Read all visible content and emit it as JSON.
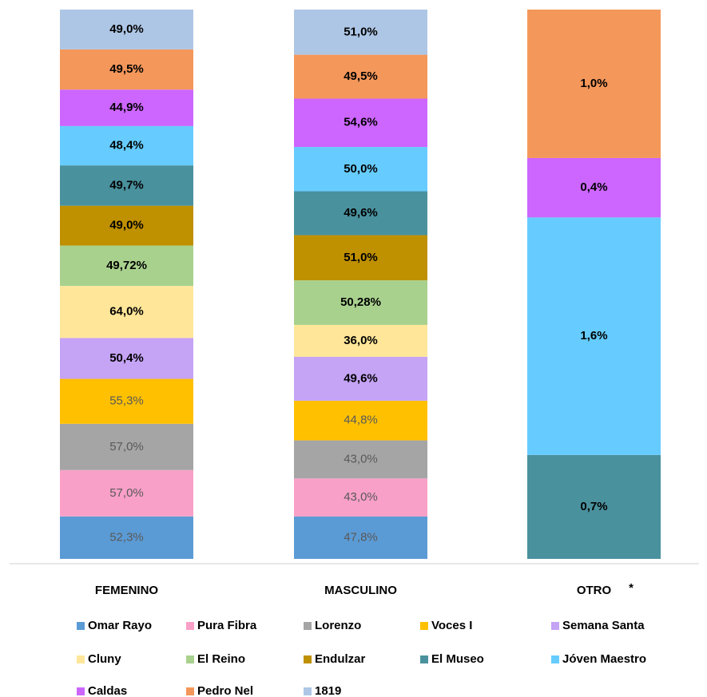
{
  "chart_data": {
    "type": "stacked_bar_100",
    "categories": [
      "FEMENINO",
      "MASCULINO",
      "OTRO"
    ],
    "annotation": "*",
    "series": [
      {
        "name": "Omar Rayo",
        "color": "#5b9bd5",
        "label_bold": false,
        "values": [
          52.3,
          47.8,
          null
        ],
        "value_labels": [
          "52,3%",
          "47,8%",
          null
        ]
      },
      {
        "name": "Pura Fibra",
        "color": "#f9a0c8",
        "label_bold": false,
        "values": [
          57.0,
          43.0,
          null
        ],
        "value_labels": [
          "57,0%",
          "43,0%",
          null
        ]
      },
      {
        "name": "Lorenzo",
        "color": "#a5a5a5",
        "label_bold": false,
        "values": [
          57.0,
          43.0,
          null
        ],
        "value_labels": [
          "57,0%",
          "43,0%",
          null
        ]
      },
      {
        "name": "Voces I",
        "color": "#ffc000",
        "label_bold": false,
        "values": [
          55.3,
          44.8,
          null
        ],
        "value_labels": [
          "55,3%",
          "44,8%",
          null
        ]
      },
      {
        "name": "Semana Santa",
        "color": "#c5a3f5",
        "label_bold": true,
        "values": [
          50.4,
          49.6,
          null
        ],
        "value_labels": [
          "50,4%",
          "49,6%",
          null
        ]
      },
      {
        "name": "Cluny",
        "color": "#ffe699",
        "label_bold": true,
        "values": [
          64.0,
          36.0,
          null
        ],
        "value_labels": [
          "64,0%",
          "36,0%",
          null
        ]
      },
      {
        "name": "El Reino",
        "color": "#a9d18e",
        "label_bold": true,
        "values": [
          49.72,
          50.28,
          null
        ],
        "value_labels": [
          "49,72%",
          "50,28%",
          null
        ]
      },
      {
        "name": "Endulzar",
        "color": "#bf9000",
        "label_bold": true,
        "values": [
          49.0,
          51.0,
          null
        ],
        "value_labels": [
          "49,0%",
          "51,0%",
          null
        ]
      },
      {
        "name": "El Museo",
        "color": "#4a919e",
        "label_bold": true,
        "values": [
          49.7,
          49.6,
          0.7
        ],
        "value_labels": [
          "49,7%",
          "49,6%",
          "0,7%"
        ]
      },
      {
        "name": "Jóven Maestro",
        "color": "#66ccff",
        "label_bold": true,
        "values": [
          48.4,
          50.0,
          1.6
        ],
        "value_labels": [
          "48,4%",
          "50,0%",
          "1,6%"
        ]
      },
      {
        "name": "Caldas",
        "color": "#cc66ff",
        "label_bold": true,
        "values": [
          44.9,
          54.6,
          0.4
        ],
        "value_labels": [
          "44,9%",
          "54,6%",
          "0,4%"
        ]
      },
      {
        "name": "Pedro Nel",
        "color": "#f4975a",
        "label_bold": true,
        "values": [
          49.5,
          49.5,
          1.0
        ],
        "value_labels": [
          "49,5%",
          "49,5%",
          "1,0%"
        ]
      },
      {
        "name": "1819",
        "color": "#adc6e5",
        "label_bold": true,
        "values": [
          49.0,
          51.0,
          null
        ],
        "value_labels": [
          "49,0%",
          "51,0%",
          null
        ]
      }
    ]
  }
}
